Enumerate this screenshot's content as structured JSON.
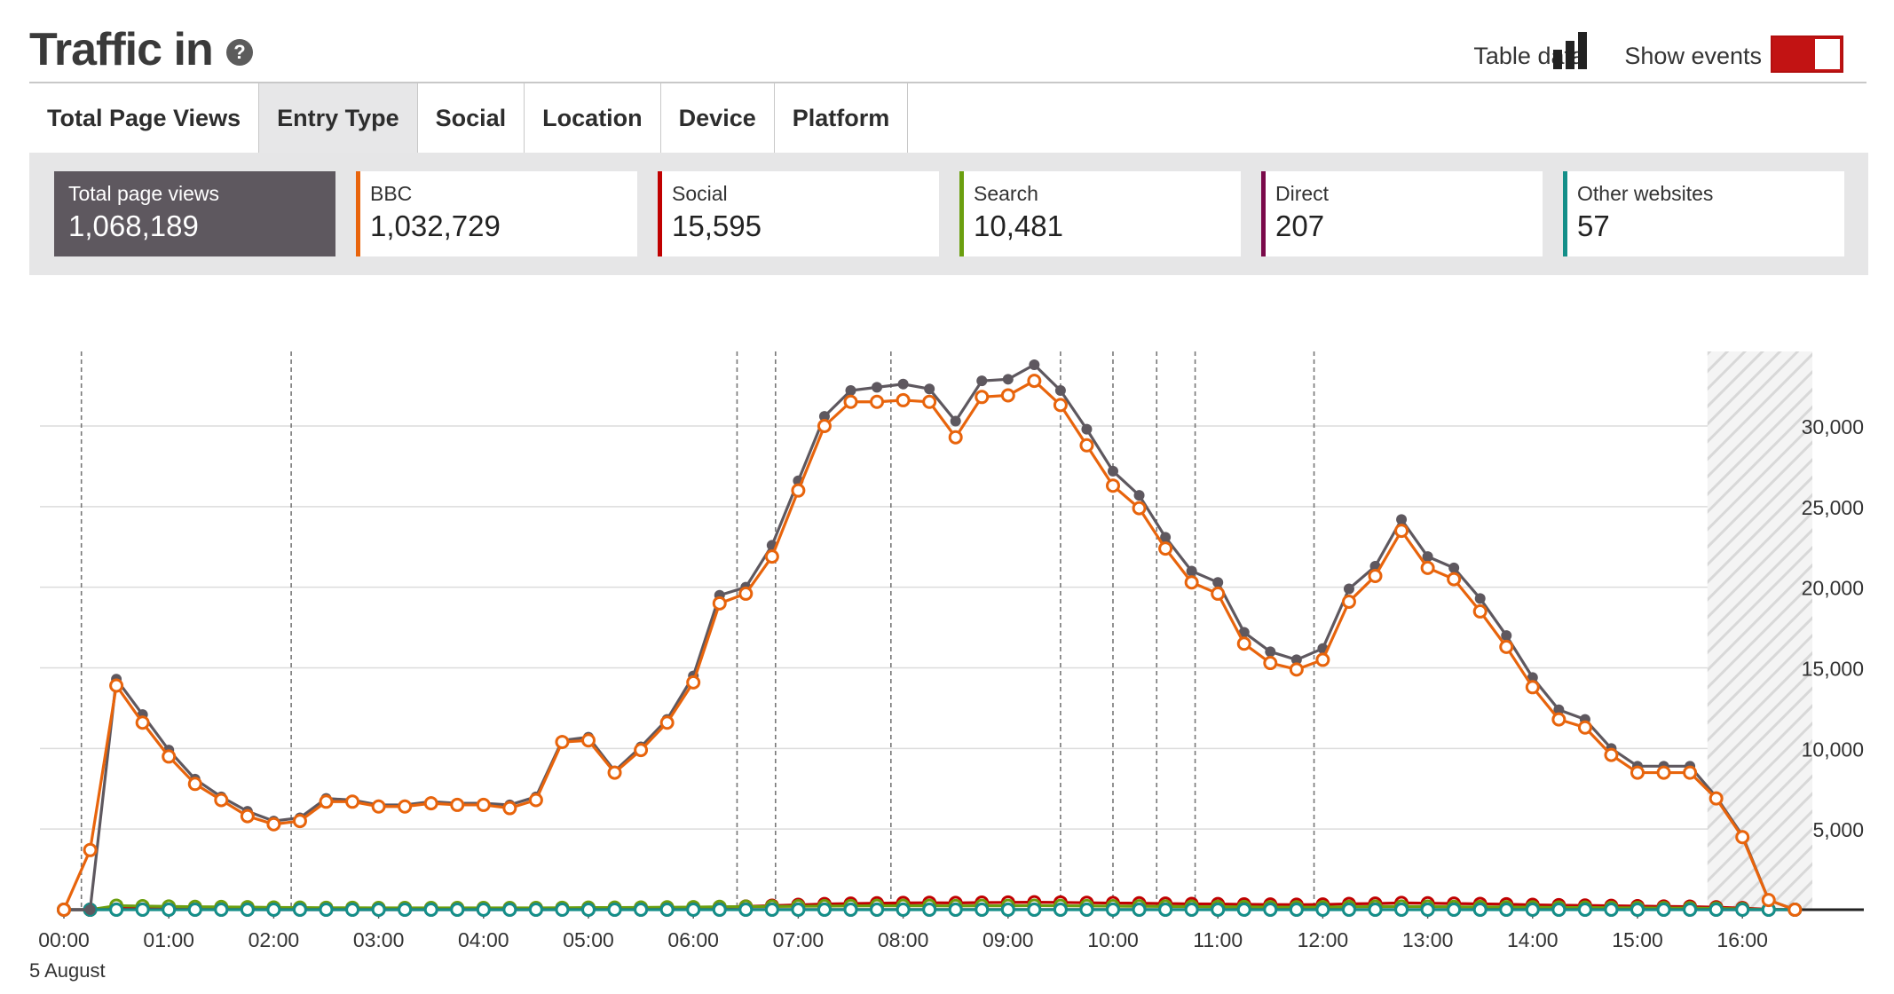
{
  "header": {
    "title": "Traffic in",
    "table_data_label": "Table data",
    "show_events_label": "Show events",
    "show_events_on": true
  },
  "tabs": [
    {
      "label": "Total Page Views",
      "active": false
    },
    {
      "label": "Entry Type",
      "active": true
    },
    {
      "label": "Social",
      "active": false
    },
    {
      "label": "Location",
      "active": false
    },
    {
      "label": "Device",
      "active": false
    },
    {
      "label": "Platform",
      "active": false
    }
  ],
  "summary": [
    {
      "label": "Total page views",
      "value": "1,068,189",
      "color": "#5e585f",
      "selected": true
    },
    {
      "label": "BBC",
      "value": "1,032,729",
      "color": "#e8640c",
      "selected": false
    },
    {
      "label": "Social",
      "value": "15,595",
      "color": "#c00000",
      "selected": false
    },
    {
      "label": "Search",
      "value": "10,481",
      "color": "#6b9f0f",
      "selected": false
    },
    {
      "label": "Direct",
      "value": "207",
      "color": "#7a0a4a",
      "selected": false
    },
    {
      "label": "Other websites",
      "value": "57",
      "color": "#148f89",
      "selected": false
    }
  ],
  "chart_data": {
    "type": "line",
    "x_interval_minutes": 15,
    "x_ticks": [
      "00:00",
      "01:00",
      "02:00",
      "03:00",
      "04:00",
      "05:00",
      "06:00",
      "07:00",
      "08:00",
      "09:00",
      "10:00",
      "11:00",
      "12:00",
      "13:00",
      "14:00",
      "15:00",
      "16:00"
    ],
    "x_sublabel": "5 August",
    "y_ticks": [
      "5,000",
      "10,000",
      "15,000",
      "20,000",
      "25,000",
      "30,000"
    ],
    "ylim": [
      0,
      35000
    ],
    "grid": true,
    "event_times": [
      "00:10",
      "02:10",
      "06:25",
      "06:47",
      "07:53",
      "09:30",
      "10:00",
      "10:25",
      "10:47",
      "11:55"
    ],
    "shaded_period": [
      "15:40",
      "16:40"
    ],
    "series": [
      {
        "name": "Total page views",
        "color": "#5e585f",
        "marker": "filled",
        "values": [
          0,
          0,
          14300,
          12100,
          9900,
          8100,
          7000,
          6100,
          5500,
          5700,
          6900,
          6800,
          6500,
          6500,
          6700,
          6600,
          6600,
          6500,
          7000,
          10500,
          10700,
          8600,
          10100,
          11800,
          14500,
          19500,
          20000,
          22600,
          26600,
          30600,
          32200,
          32400,
          32600,
          32300,
          30300,
          32800,
          32900,
          33800,
          32200,
          29800,
          27200,
          25700,
          23100,
          21000,
          20300,
          17200,
          16000,
          15500,
          16200,
          19900,
          21300,
          24200,
          21900,
          21200,
          19300,
          17000,
          14400,
          12400,
          11800,
          10000,
          8900,
          8900,
          8900,
          7000,
          4600,
          600,
          0
        ],
        "end_time_index": 66
      },
      {
        "name": "BBC",
        "color": "#e8640c",
        "marker": "hollow",
        "values": [
          0,
          3700,
          13900,
          11600,
          9500,
          7800,
          6800,
          5800,
          5300,
          5500,
          6700,
          6700,
          6400,
          6400,
          6600,
          6500,
          6500,
          6300,
          6800,
          10400,
          10500,
          8500,
          9900,
          11600,
          14100,
          19000,
          19600,
          21900,
          26000,
          30000,
          31500,
          31500,
          31600,
          31500,
          29300,
          31800,
          31900,
          32800,
          31300,
          28800,
          26300,
          24900,
          22400,
          20300,
          19600,
          16500,
          15300,
          14900,
          15500,
          19100,
          20700,
          23500,
          21200,
          20500,
          18500,
          16300,
          13800,
          11800,
          11300,
          9600,
          8500,
          8500,
          8500,
          6900,
          4500,
          600,
          0
        ],
        "end_time_index": 66
      },
      {
        "name": "Social",
        "color": "#c00000",
        "marker": "hollow",
        "values": [
          0,
          0,
          80,
          70,
          60,
          50,
          40,
          40,
          40,
          40,
          40,
          40,
          40,
          40,
          40,
          40,
          40,
          40,
          40,
          50,
          60,
          60,
          70,
          80,
          100,
          150,
          200,
          250,
          300,
          350,
          380,
          400,
          420,
          430,
          420,
          440,
          450,
          460,
          450,
          430,
          410,
          400,
          380,
          360,
          350,
          330,
          320,
          310,
          320,
          360,
          380,
          420,
          400,
          380,
          360,
          340,
          300,
          280,
          260,
          240,
          220,
          200,
          190,
          150,
          100,
          20,
          0
        ],
        "end_time_index": 66
      },
      {
        "name": "Search",
        "color": "#6b9f0f",
        "marker": "hollow",
        "values": [
          0,
          0,
          250,
          220,
          200,
          180,
          170,
          160,
          140,
          130,
          120,
          120,
          110,
          110,
          110,
          110,
          110,
          110,
          110,
          120,
          130,
          130,
          140,
          150,
          160,
          180,
          190,
          200,
          210,
          220,
          230,
          240,
          240,
          240,
          230,
          240,
          240,
          250,
          240,
          230,
          220,
          210,
          200,
          190,
          180,
          170,
          160,
          150,
          160,
          180,
          190,
          200,
          190,
          180,
          170,
          160,
          150,
          140,
          130,
          120,
          110,
          100,
          100,
          80,
          50,
          10,
          0
        ],
        "end_time_index": 66
      },
      {
        "name": "Direct",
        "color": "#7a0a4a",
        "marker": "hollow",
        "values": [
          0,
          0,
          5,
          4,
          3,
          3,
          3,
          3,
          2,
          2,
          2,
          2,
          2,
          2,
          2,
          2,
          2,
          2,
          2,
          3,
          3,
          3,
          3,
          3,
          4,
          4,
          5,
          5,
          5,
          5,
          5,
          5,
          5,
          5,
          5,
          5,
          5,
          5,
          5,
          5,
          5,
          5,
          4,
          4,
          4,
          4,
          4,
          4,
          4,
          4,
          4,
          4,
          4,
          4,
          4,
          4,
          4,
          3,
          3,
          3,
          3,
          3,
          3,
          2,
          2,
          1,
          0
        ],
        "end_time_index": 66
      },
      {
        "name": "Other websites",
        "color": "#148f89",
        "marker": "hollow",
        "values": [
          0,
          0,
          2,
          2,
          1,
          1,
          1,
          1,
          1,
          1,
          1,
          1,
          1,
          1,
          1,
          1,
          1,
          1,
          1,
          1,
          1,
          1,
          1,
          1,
          1,
          1,
          1,
          1,
          1,
          1,
          1,
          1,
          1,
          1,
          1,
          1,
          1,
          1,
          1,
          1,
          1,
          1,
          1,
          1,
          1,
          1,
          1,
          1,
          1,
          1,
          1,
          1,
          1,
          1,
          1,
          1,
          1,
          1,
          1,
          1,
          1,
          1,
          1,
          1,
          1,
          0,
          0
        ],
        "end_time_index": 66
      }
    ]
  }
}
